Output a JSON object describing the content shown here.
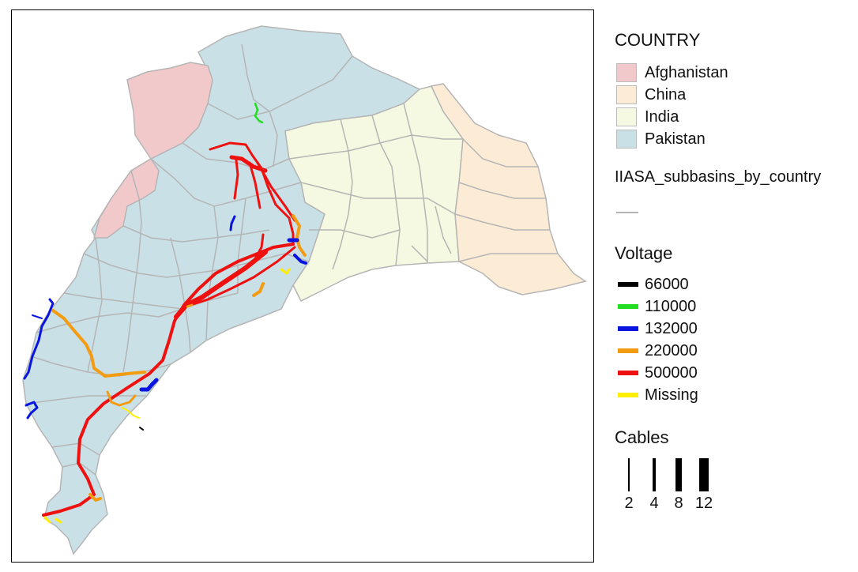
{
  "map": {
    "colors": {
      "Afghanistan": "#f2c9cb",
      "China": "#fcecd6",
      "India": "#f6f9e1",
      "Pakistan": "#c9e0e6",
      "subbasin_border": "#b5b5b5"
    }
  },
  "legend": {
    "country": {
      "title": "COUNTRY",
      "items": [
        {
          "label": "Afghanistan",
          "color": "#f2c9cb"
        },
        {
          "label": "China",
          "color": "#fcecd6"
        },
        {
          "label": "India",
          "color": "#f6f9e1"
        },
        {
          "label": "Pakistan",
          "color": "#c9e0e6"
        }
      ]
    },
    "subbasins": {
      "title": "IIASA_subbasins_by_country",
      "line_color": "#b5b5b5"
    },
    "voltage": {
      "title": "Voltage",
      "items": [
        {
          "label": "66000",
          "color": "#000000"
        },
        {
          "label": "110000",
          "color": "#22dd22"
        },
        {
          "label": "132000",
          "color": "#0a14e0"
        },
        {
          "label": "220000",
          "color": "#f39c12"
        },
        {
          "label": "500000",
          "color": "#ef1010"
        },
        {
          "label": "Missing",
          "color": "#ffee00"
        }
      ]
    },
    "cables": {
      "title": "Cables",
      "items": [
        {
          "label": "2"
        },
        {
          "label": "4"
        },
        {
          "label": "8"
        },
        {
          "label": "12"
        }
      ]
    }
  }
}
